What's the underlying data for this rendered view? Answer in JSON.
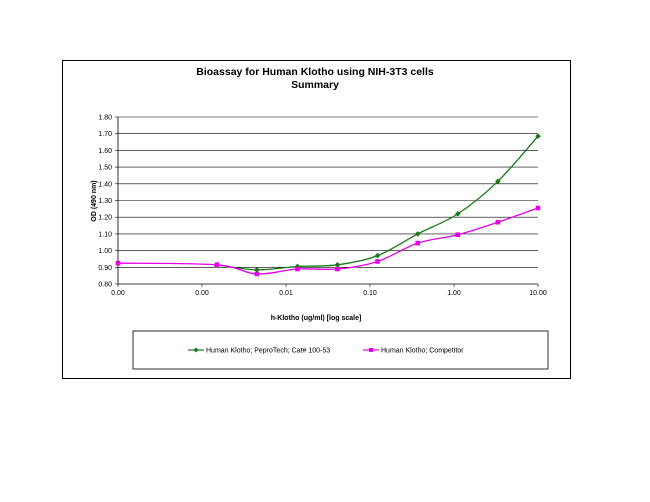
{
  "chart_data": {
    "type": "line",
    "title": "Bioassay for Human Klotho using NIH-3T3 cells",
    "subtitle": "Summary",
    "xlabel": "h-Klotho (ug/ml) [log scale]",
    "ylabel": "OD (490 nm)",
    "x_scale": "log",
    "xlim": [
      0.0001,
      10
    ],
    "ylim": [
      0.8,
      1.8
    ],
    "x_tick_values": [
      0.0001,
      0.001,
      0.01,
      0.1,
      1,
      10
    ],
    "x_tick_labels": [
      "0.00",
      "0.00",
      "0.01",
      "0.10",
      "1.00",
      "10.00"
    ],
    "y_ticks": [
      "0.80",
      "0.90",
      "1.00",
      "1.10",
      "1.20",
      "1.30",
      "1.40",
      "1.50",
      "1.60",
      "1.70",
      "1.80"
    ],
    "grid": true,
    "legend_position": "bottom",
    "series": [
      {
        "name": "Human Klotho; PeproTech; Cat# 100-53",
        "color": "#1a7a1a",
        "marker": "diamond",
        "x": [
          0.0015,
          0.0045,
          0.0137,
          0.041,
          0.123,
          0.37,
          1.11,
          3.33,
          10
        ],
        "values": [
          0.915,
          0.885,
          0.905,
          0.915,
          0.97,
          1.1,
          1.22,
          1.415,
          1.685
        ]
      },
      {
        "name": "Human Klotho; Competitor",
        "color": "#e600e6",
        "marker": "square",
        "x": [
          0.0001,
          0.0015,
          0.0045,
          0.0137,
          0.041,
          0.123,
          0.37,
          1.11,
          3.33,
          10
        ],
        "values": [
          0.925,
          0.915,
          0.86,
          0.89,
          0.89,
          0.935,
          1.045,
          1.095,
          1.17,
          1.255
        ]
      }
    ]
  }
}
